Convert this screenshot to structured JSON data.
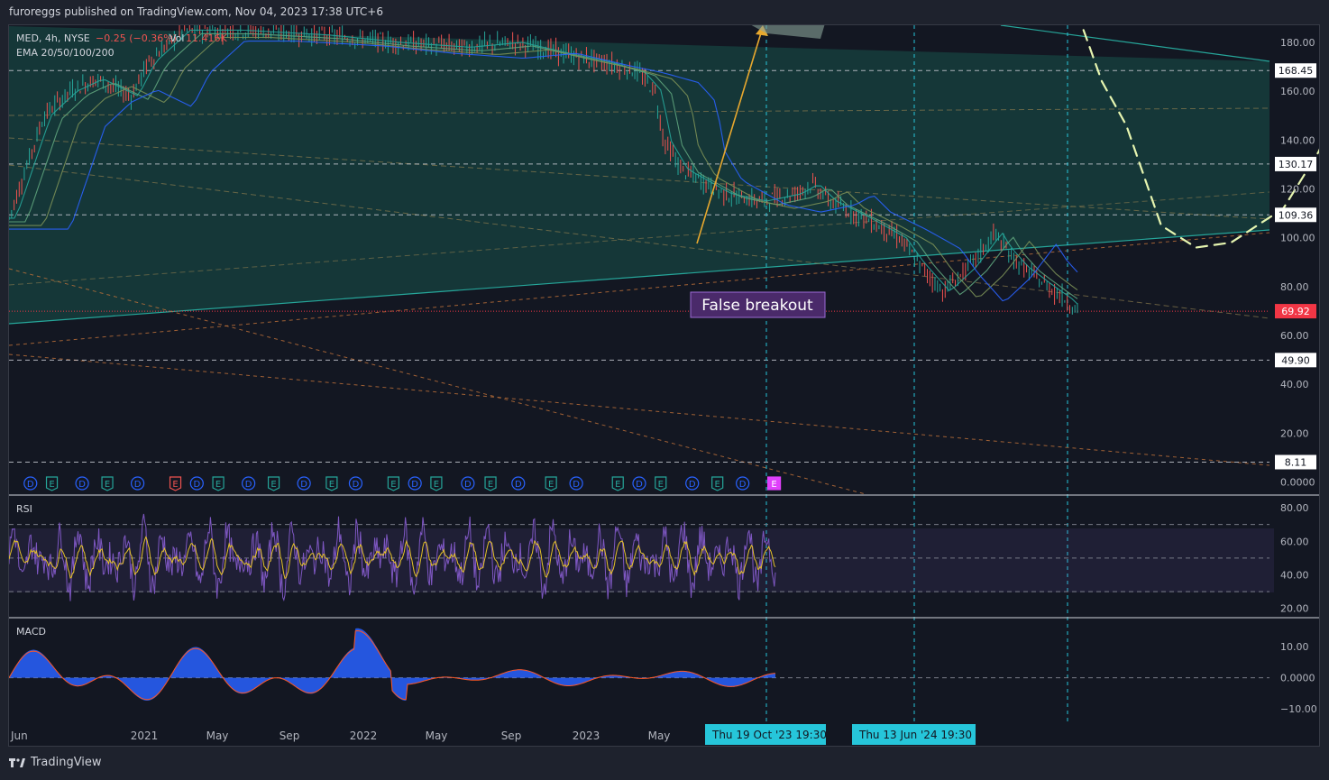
{
  "header": {
    "publisher_line": "furoreggs published on TradingView.com, Nov 04, 2023 17:38 UTC+6"
  },
  "footer": {
    "brand": "TradingView",
    "logo_icon": "tradingview-logo-icon"
  },
  "legend": {
    "symbol": "MED, 4h, NYSE",
    "change": "−0.25 (−0.36%)",
    "volume_label": "Vol",
    "volume_value": "11.416K",
    "ema_label": "EMA 20/50/100/200"
  },
  "annotation": {
    "false_breakout": "False breakout"
  },
  "colors": {
    "background": "#131722",
    "channel_fill": "#163b3b",
    "trendline": "#26a69a",
    "candle_up": "#26a69a",
    "candle_down": "#ef5350",
    "projection": "#e6f5b0",
    "arrow": "#e8a82e",
    "rsi_line": "#7e57c2",
    "rsi_signal": "#e6c229",
    "macd_hist": "#2962ff",
    "macd_line": "#ff5722",
    "price_tag": "#f23645",
    "time_tag": "#26c6da"
  },
  "chart_data": [
    {
      "type": "line",
      "title": "MED, 4h, NYSE",
      "y_axis_ticks": [
        "180.00",
        "160.00",
        "140.00",
        "120.00",
        "100.00",
        "80.00",
        "60.00",
        "40.00",
        "20.00",
        "0.0000"
      ],
      "ylim": [
        -5,
        187
      ],
      "x_axis_ticks": [
        "Jun",
        "2021",
        "May",
        "Sep",
        "2022",
        "May",
        "Sep",
        "2023",
        "May"
      ],
      "horizontal_levels": [
        {
          "value": 168.45,
          "label": "168.45"
        },
        {
          "value": 130.17,
          "label": "130.17"
        },
        {
          "value": 109.36,
          "label": "109.36"
        },
        {
          "value": 49.9,
          "label": "49.90"
        },
        {
          "value": 8.11,
          "label": "8.11"
        }
      ],
      "last_price": {
        "value": 69.92,
        "label": "69.92"
      },
      "series": [
        {
          "values": [
            [
              0,
              108
            ],
            [
              0.02,
              150
            ],
            [
              0.035,
              160
            ],
            [
              0.05,
              165
            ],
            [
              0.07,
              158
            ],
            [
              0.08,
              172
            ],
            [
              0.1,
              185
            ],
            [
              0.13,
              185
            ],
            [
              0.18,
              183
            ],
            [
              0.22,
              180
            ],
            [
              0.26,
              178
            ],
            [
              0.29,
              180
            ],
            [
              0.32,
              175
            ],
            [
              0.34,
              172
            ],
            [
              0.36,
              168
            ],
            [
              0.37,
              160
            ],
            [
              0.375,
              140
            ],
            [
              0.385,
              128
            ],
            [
              0.41,
              118
            ],
            [
              0.43,
              115
            ],
            [
              0.45,
              118
            ],
            [
              0.46,
              122
            ],
            [
              0.47,
              115
            ],
            [
              0.49,
              108
            ],
            [
              0.51,
              100
            ],
            [
              0.52,
              90
            ],
            [
              0.53,
              82
            ],
            [
              0.535,
              78
            ],
            [
              0.55,
              88
            ],
            [
              0.565,
              102
            ],
            [
              0.57,
              96
            ],
            [
              0.58,
              88
            ],
            [
              0.595,
              80
            ],
            [
              0.605,
              75
            ],
            [
              0.612,
              70
            ]
          ]
        }
      ],
      "time_markers": [
        {
          "label": "Thu 19 Oct '23   19:30",
          "x": 0.612
        },
        {
          "label": "Thu 13 Jun '24   19:30",
          "x": 0.73
        }
      ],
      "projection_path": [
        [
          0.612,
          192
        ],
        [
          0.626,
          164
        ],
        [
          0.64,
          146
        ],
        [
          0.66,
          105
        ],
        [
          0.68,
          96
        ],
        [
          0.7,
          98
        ],
        [
          0.73,
          112
        ],
        [
          0.75,
          135
        ],
        [
          0.77,
          165
        ],
        [
          0.786,
          198
        ]
      ],
      "event_badges": [
        {
          "x": 0.017,
          "label": "D",
          "kind": "dividend"
        },
        {
          "x": 0.034,
          "label": "E",
          "kind": "earnings"
        },
        {
          "x": 0.058,
          "label": "D",
          "kind": "dividend"
        },
        {
          "x": 0.078,
          "label": "E",
          "kind": "earnings"
        },
        {
          "x": 0.102,
          "label": "D",
          "kind": "dividend"
        },
        {
          "x": 0.132,
          "label": "E",
          "kind": "earnings-red"
        },
        {
          "x": 0.149,
          "label": "D",
          "kind": "dividend"
        },
        {
          "x": 0.166,
          "label": "E",
          "kind": "earnings"
        },
        {
          "x": 0.19,
          "label": "D",
          "kind": "dividend"
        },
        {
          "x": 0.21,
          "label": "E",
          "kind": "earnings"
        },
        {
          "x": 0.234,
          "label": "D",
          "kind": "dividend"
        },
        {
          "x": 0.256,
          "label": "E",
          "kind": "earnings"
        },
        {
          "x": 0.275,
          "label": "D",
          "kind": "dividend"
        },
        {
          "x": 0.305,
          "label": "E",
          "kind": "earnings"
        },
        {
          "x": 0.322,
          "label": "D",
          "kind": "dividend"
        },
        {
          "x": 0.339,
          "label": "E",
          "kind": "earnings"
        },
        {
          "x": 0.364,
          "label": "D",
          "kind": "dividend"
        },
        {
          "x": 0.382,
          "label": "E",
          "kind": "earnings"
        },
        {
          "x": 0.404,
          "label": "D",
          "kind": "dividend"
        },
        {
          "x": 0.43,
          "label": "E",
          "kind": "earnings"
        },
        {
          "x": 0.45,
          "label": "D",
          "kind": "dividend"
        },
        {
          "x": 0.483,
          "label": "E",
          "kind": "earnings"
        },
        {
          "x": 0.5,
          "label": "D",
          "kind": "dividend"
        },
        {
          "x": 0.517,
          "label": "E",
          "kind": "earnings"
        },
        {
          "x": 0.542,
          "label": "D",
          "kind": "dividend"
        },
        {
          "x": 0.562,
          "label": "E",
          "kind": "earnings"
        },
        {
          "x": 0.582,
          "label": "D",
          "kind": "dividend"
        },
        {
          "x": 0.607,
          "label": "E",
          "kind": "earnings-next"
        }
      ]
    },
    {
      "type": "line",
      "title": "RSI",
      "y_axis_ticks": [
        "80.00",
        "60.00",
        "40.00",
        "20.00"
      ],
      "ylim": [
        15,
        87
      ],
      "bands": [
        70,
        50,
        30
      ]
    },
    {
      "type": "area",
      "title": "MACD",
      "y_axis_ticks": [
        "10.00",
        "0.0000",
        "−10.00"
      ],
      "ylim": [
        -14,
        19
      ]
    }
  ]
}
